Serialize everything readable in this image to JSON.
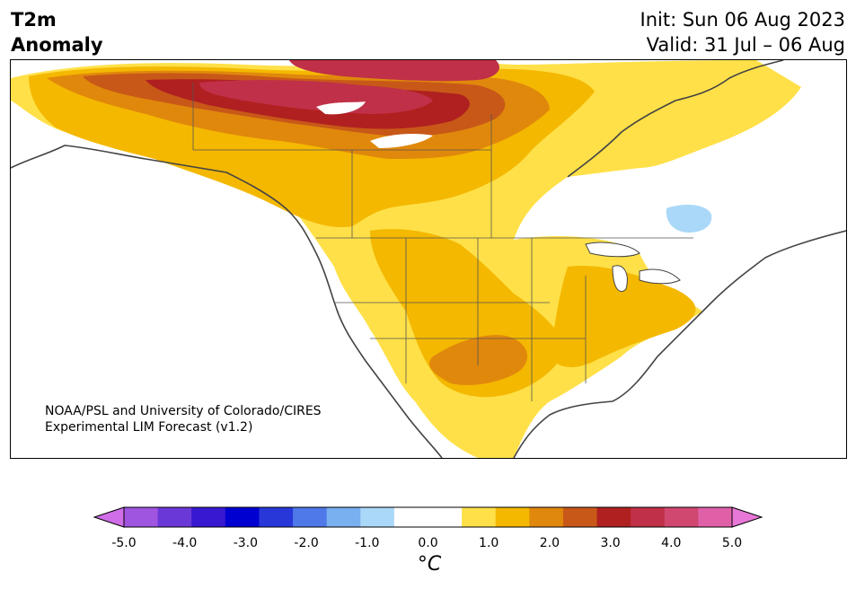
{
  "header": {
    "title_line1": "T2m",
    "title_line2": "Anomaly",
    "init_label": "Init: Sun 06 Aug 2023",
    "valid_label": "Valid: 31 Jul – 06 Aug"
  },
  "map": {
    "credit_line1": "NOAA/PSL and University of Colorado/CIRES",
    "credit_line2": "Experimental LIM Forecast (v1.2)"
  },
  "colorbar": {
    "unit": "°C",
    "ticks": [
      "-5.0",
      "-4.0",
      "-3.0",
      "-2.0",
      "-1.0",
      "0.0",
      "1.0",
      "2.0",
      "3.0",
      "4.0",
      "5.0"
    ],
    "colors": [
      "#cf6ee8",
      "#9f55e0",
      "#6b38d8",
      "#3818d0",
      "#0000d0",
      "#2838d8",
      "#4f78e8",
      "#78b0f0",
      "#aad8f8",
      "#ffffff",
      "#ffffff",
      "#ffe048",
      "#f4b800",
      "#e0880c",
      "#c85818",
      "#b02020",
      "#c03048",
      "#d04870",
      "#e060a8",
      "#e878d8"
    ]
  }
}
